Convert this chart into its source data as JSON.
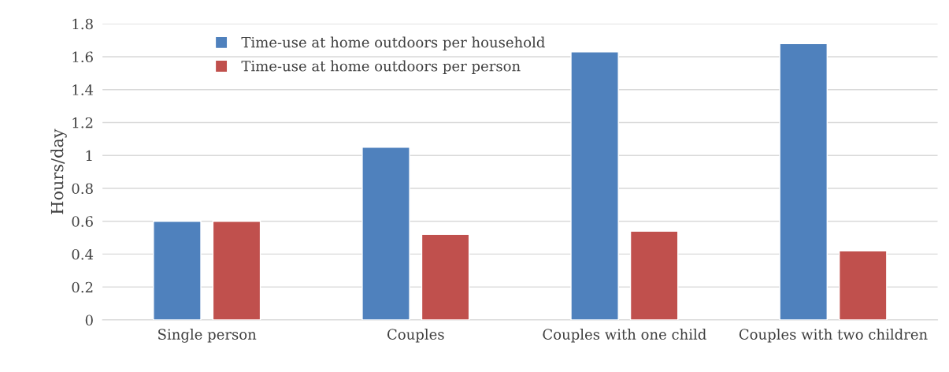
{
  "chart_data": {
    "type": "bar",
    "ylabel": "Hours/day",
    "categories": [
      "Single person",
      "Couples",
      "Couples with one child",
      "Couples with two children"
    ],
    "series": [
      {
        "name": "Time-use at home outdoors per household",
        "color": "#4f81bd",
        "values": [
          0.6,
          1.05,
          1.63,
          1.68
        ]
      },
      {
        "name": "Time-use at home outdoors per person",
        "color": "#c0504d",
        "values": [
          0.6,
          0.52,
          0.54,
          0.42
        ]
      }
    ],
    "ylim": [
      0,
      1.8
    ],
    "yticks": [
      0,
      0.2,
      0.4,
      0.6,
      0.8,
      1,
      1.2,
      1.4,
      1.6,
      1.8
    ],
    "grid": "y",
    "legend": "top left"
  }
}
